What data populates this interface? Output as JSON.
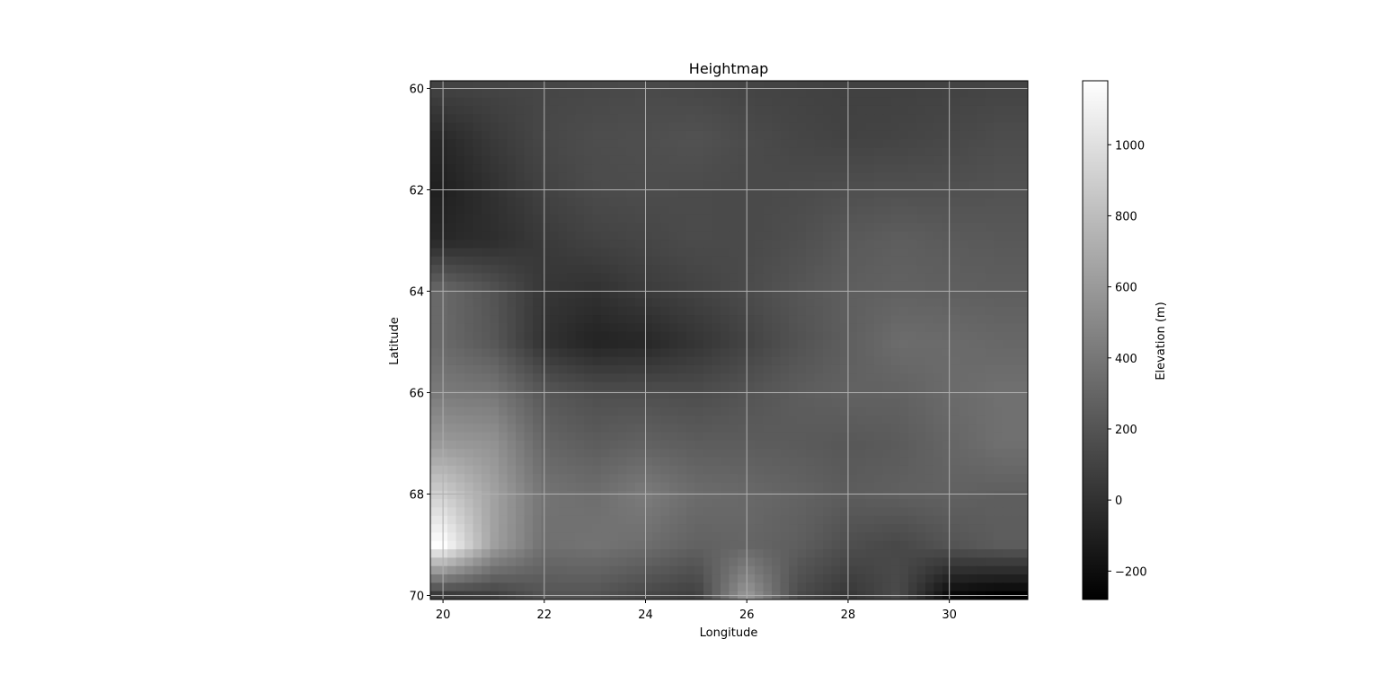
{
  "chart_data": {
    "type": "heatmap",
    "title": "Heightmap",
    "xlabel": "Longitude",
    "ylabel": "Latitude",
    "colorbar_label": "Elevation (m)",
    "colormap": "gray",
    "xlim": [
      19.75,
      31.55
    ],
    "ylim": [
      70.08,
      59.85
    ],
    "y_inverted": true,
    "grid": true,
    "x_ticks": [
      20,
      22,
      24,
      26,
      28,
      30
    ],
    "x_tick_labels": [
      "20",
      "22",
      "24",
      "26",
      "28",
      "30"
    ],
    "y_ticks": [
      60,
      62,
      64,
      66,
      68,
      70
    ],
    "y_tick_labels": [
      "60",
      "62",
      "64",
      "66",
      "68",
      "70"
    ],
    "color_range": [
      -280,
      1180
    ],
    "colorbar_ticks": [
      -200,
      0,
      200,
      400,
      600,
      800,
      1000
    ],
    "colorbar_tick_labels": [
      "−200",
      "0",
      "200",
      "400",
      "600",
      "800",
      "1000"
    ],
    "grid_lon": [
      20,
      21,
      22,
      23,
      24,
      25,
      26,
      27,
      28,
      29,
      30,
      31
    ],
    "grid_lat": [
      60,
      61,
      62,
      63,
      64,
      65,
      66,
      67,
      68,
      69,
      70
    ],
    "elevation": [
      [
        100,
        110,
        120,
        130,
        140,
        130,
        110,
        100,
        90,
        90,
        100,
        110
      ],
      [
        -50,
        50,
        130,
        160,
        170,
        190,
        150,
        120,
        100,
        110,
        130,
        160
      ],
      [
        -100,
        0,
        100,
        150,
        160,
        150,
        140,
        150,
        170,
        180,
        180,
        190
      ],
      [
        -50,
        -20,
        50,
        100,
        120,
        150,
        140,
        170,
        230,
        260,
        240,
        230
      ],
      [
        320,
        200,
        30,
        0,
        60,
        100,
        150,
        210,
        260,
        280,
        270,
        260
      ],
      [
        320,
        220,
        0,
        -80,
        -60,
        20,
        100,
        190,
        260,
        340,
        330,
        310
      ],
      [
        420,
        400,
        220,
        170,
        170,
        160,
        200,
        250,
        280,
        280,
        330,
        360
      ],
      [
        600,
        560,
        300,
        250,
        280,
        250,
        250,
        240,
        220,
        240,
        300,
        360
      ],
      [
        900,
        650,
        380,
        350,
        430,
        340,
        320,
        290,
        250,
        270,
        280,
        260
      ],
      [
        1180,
        640,
        360,
        380,
        350,
        280,
        300,
        260,
        170,
        130,
        200,
        250
      ],
      [
        50,
        80,
        200,
        200,
        130,
        80,
        600,
        150,
        30,
        150,
        -220,
        -280
      ]
    ]
  }
}
